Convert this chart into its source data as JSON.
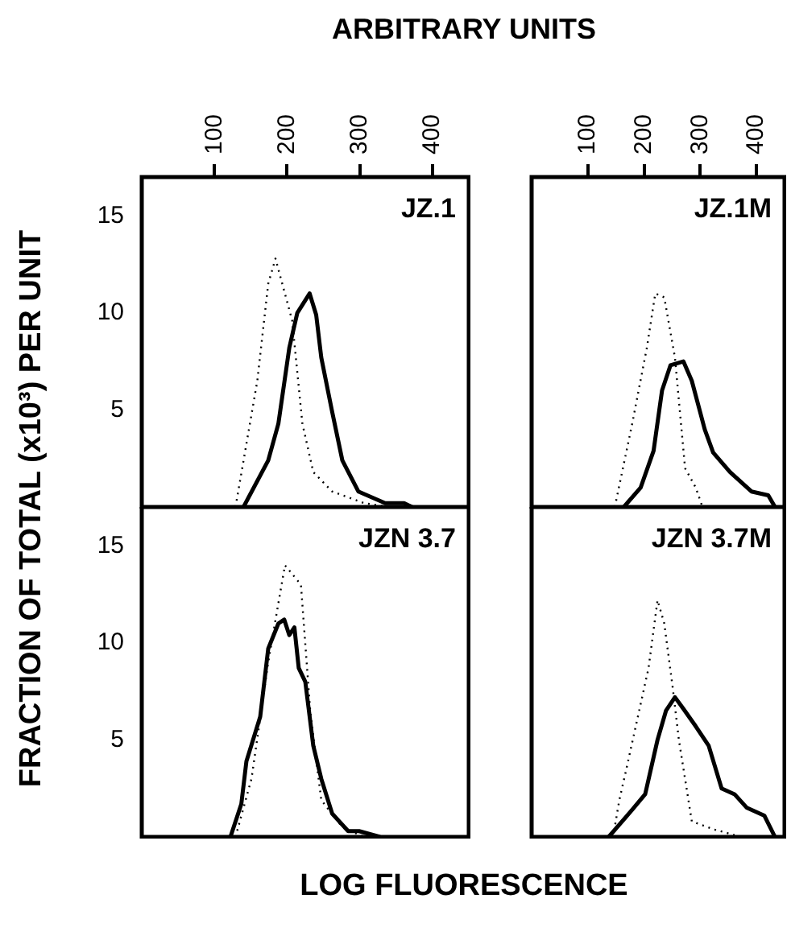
{
  "chart_data": [
    {
      "type": "line",
      "title": "JZ.1",
      "xlabel": "ARBITRARY UNITS",
      "ylabel": "FRACTION OF TOTAL (x10³) PER UNIT",
      "xlim": [
        0,
        450
      ],
      "xticks": [
        100,
        200,
        300,
        400
      ],
      "ylim": [
        0,
        17
      ],
      "yticks": [
        5,
        10,
        15
      ],
      "series": [
        {
          "color": "#000000",
          "line_style": "dotted",
          "x": [
            129,
            159,
            174,
            184,
            207,
            221,
            236,
            262,
            306,
            340
          ],
          "values": [
            0,
            6.5,
            11.5,
            12.8,
            9.6,
            4.3,
            1.8,
            0.8,
            0.2,
            0
          ]
        },
        {
          "color": "#000000",
          "line_style": "solid",
          "x": [
            140,
            174,
            188,
            203,
            214,
            231,
            240,
            247,
            262,
            276,
            298,
            335,
            361,
            372
          ],
          "values": [
            0,
            2.4,
            4.3,
            8.2,
            10,
            11,
            9.9,
            7.7,
            4.9,
            2.4,
            0.8,
            0.2,
            0.2,
            0
          ]
        }
      ]
    },
    {
      "type": "line",
      "title": "JZ.1M",
      "xlim": [
        0,
        450
      ],
      "xticks": [
        100,
        200,
        300,
        400
      ],
      "ylim": [
        0,
        17
      ],
      "tick_labels": "x",
      "series": [
        {
          "color": "#000000",
          "line_style": "dotted",
          "x": [
            148,
            179,
            205,
            220,
            236,
            255,
            273,
            292,
            304
          ],
          "values": [
            0,
            4.3,
            8.2,
            11,
            10.8,
            7.7,
            2,
            1,
            0
          ]
        },
        {
          "color": "#000000",
          "line_style": "solid",
          "x": [
            164,
            194,
            217,
            232,
            247,
            270,
            285,
            308,
            323,
            353,
            391,
            421,
            433
          ],
          "values": [
            0,
            1,
            2.9,
            6,
            7.3,
            7.5,
            6.5,
            4,
            2.8,
            1.8,
            0.8,
            0.6,
            0
          ]
        }
      ]
    },
    {
      "type": "line",
      "title": "JZN 3.7",
      "xlabel": "LOG FLUORESCENCE",
      "xlim": [
        0,
        450
      ],
      "ylim": [
        0,
        17
      ],
      "yticks": [
        5,
        10,
        15
      ],
      "tick_labels": "y",
      "series": [
        {
          "color": "#000000",
          "line_style": "dotted",
          "x": [
            129,
            151,
            174,
            197,
            219,
            232,
            247,
            276,
            306
          ],
          "values": [
            0,
            3,
            9,
            14,
            13,
            6.4,
            1.9,
            0.5,
            0
          ]
        },
        {
          "color": "#000000",
          "line_style": "solid",
          "x": [
            122,
            137,
            144,
            163,
            174,
            188,
            196,
            203,
            210,
            216,
            225,
            236,
            247,
            262,
            284,
            299,
            328
          ],
          "values": [
            0,
            1.7,
            3.9,
            6.2,
            9.7,
            11,
            11.2,
            10.4,
            10.8,
            8.7,
            8,
            4.7,
            3,
            1.2,
            0.3,
            0.3,
            0
          ]
        }
      ]
    },
    {
      "type": "line",
      "title": "JZN 3.7M",
      "xlim": [
        0,
        450
      ],
      "ylim": [
        0,
        17
      ],
      "tick_labels": false,
      "series": [
        {
          "color": "#000000",
          "line_style": "dotted",
          "x": [
            145,
            156,
            167,
            186,
            208,
            224,
            236,
            251,
            262,
            285,
            323,
            361
          ],
          "values": [
            0,
            1.9,
            3.3,
            5.8,
            8.7,
            12.2,
            11,
            7.7,
            5,
            0.8,
            0.4,
            0.1
          ]
        },
        {
          "color": "#000000",
          "line_style": "solid",
          "x": [
            137,
            179,
            202,
            224,
            239,
            255,
            270,
            292,
            315,
            338,
            361,
            383,
            414,
            433
          ],
          "values": [
            0,
            1.4,
            2.2,
            5,
            6.5,
            7.2,
            6.6,
            5.7,
            4.7,
            2.5,
            2.2,
            1.5,
            1.1,
            0
          ]
        }
      ]
    }
  ]
}
